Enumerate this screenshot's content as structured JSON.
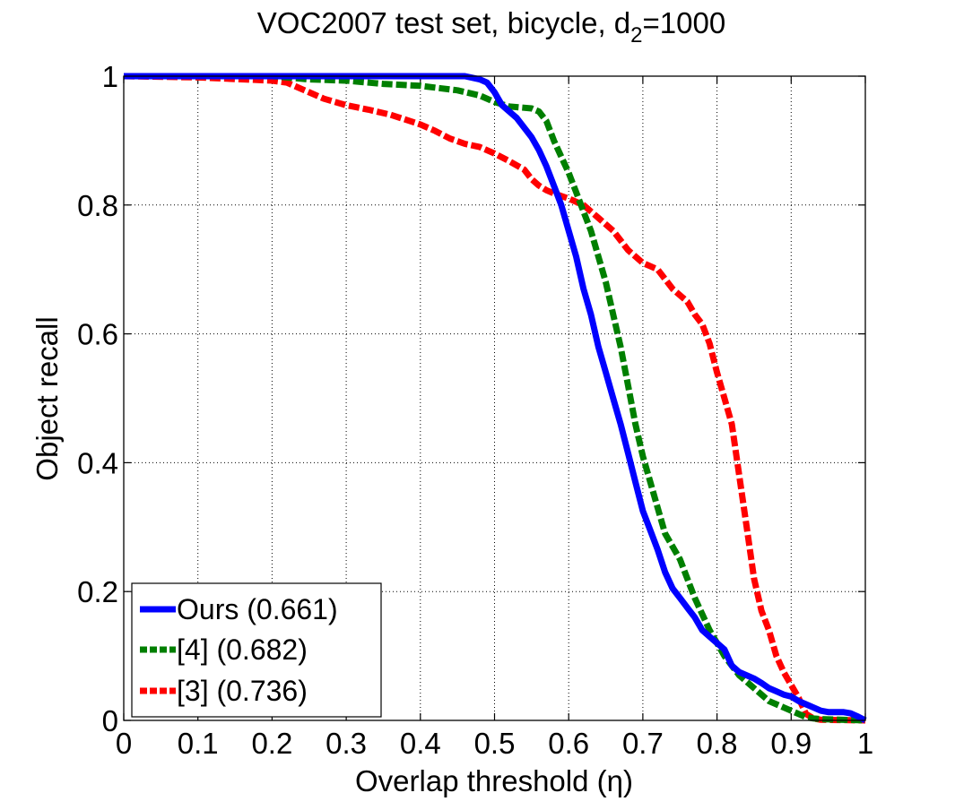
{
  "chart_data": {
    "type": "line",
    "title_main": "VOC2007 test set, bicycle, d",
    "title_subscript": "2",
    "title_suffix": "=1000",
    "xlabel": "Overlap threshold (η)",
    "ylabel": "Object recall",
    "xlim": [
      0,
      1
    ],
    "ylim": [
      0,
      1
    ],
    "grid": true,
    "legend_position": "bottom-left",
    "x_ticks": [
      {
        "value": 0,
        "label": "0"
      },
      {
        "value": 0.1,
        "label": "0.1"
      },
      {
        "value": 0.2,
        "label": "0.2"
      },
      {
        "value": 0.3,
        "label": "0.3"
      },
      {
        "value": 0.4,
        "label": "0.4"
      },
      {
        "value": 0.5,
        "label": "0.5"
      },
      {
        "value": 0.6,
        "label": "0.6"
      },
      {
        "value": 0.7,
        "label": "0.7"
      },
      {
        "value": 0.8,
        "label": "0.8"
      },
      {
        "value": 0.9,
        "label": "0.9"
      },
      {
        "value": 1,
        "label": "1"
      }
    ],
    "y_ticks": [
      {
        "value": 0,
        "label": "0"
      },
      {
        "value": 0.2,
        "label": "0.2"
      },
      {
        "value": 0.4,
        "label": "0.4"
      },
      {
        "value": 0.6,
        "label": "0.6"
      },
      {
        "value": 0.8,
        "label": "0.8"
      },
      {
        "value": 1,
        "label": "1"
      }
    ],
    "series": [
      {
        "name": "Ours (0.661)",
        "key": "ours",
        "color": "#0000ff",
        "dash": "solid",
        "points": [
          [
            0,
            1
          ],
          [
            0.3,
            1
          ],
          [
            0.46,
            1
          ],
          [
            0.48,
            0.995
          ],
          [
            0.49,
            0.99
          ],
          [
            0.5,
            0.975
          ],
          [
            0.51,
            0.955
          ],
          [
            0.52,
            0.945
          ],
          [
            0.53,
            0.935
          ],
          [
            0.54,
            0.92
          ],
          [
            0.55,
            0.905
          ],
          [
            0.56,
            0.885
          ],
          [
            0.57,
            0.86
          ],
          [
            0.58,
            0.83
          ],
          [
            0.59,
            0.8
          ],
          [
            0.6,
            0.76
          ],
          [
            0.61,
            0.72
          ],
          [
            0.62,
            0.67
          ],
          [
            0.63,
            0.63
          ],
          [
            0.64,
            0.58
          ],
          [
            0.65,
            0.54
          ],
          [
            0.66,
            0.5
          ],
          [
            0.67,
            0.46
          ],
          [
            0.68,
            0.415
          ],
          [
            0.69,
            0.37
          ],
          [
            0.7,
            0.325
          ],
          [
            0.71,
            0.295
          ],
          [
            0.72,
            0.265
          ],
          [
            0.73,
            0.23
          ],
          [
            0.74,
            0.205
          ],
          [
            0.75,
            0.19
          ],
          [
            0.76,
            0.175
          ],
          [
            0.77,
            0.16
          ],
          [
            0.78,
            0.14
          ],
          [
            0.79,
            0.13
          ],
          [
            0.8,
            0.12
          ],
          [
            0.81,
            0.11
          ],
          [
            0.82,
            0.085
          ],
          [
            0.83,
            0.075
          ],
          [
            0.84,
            0.07
          ],
          [
            0.85,
            0.065
          ],
          [
            0.86,
            0.058
          ],
          [
            0.87,
            0.05
          ],
          [
            0.88,
            0.045
          ],
          [
            0.89,
            0.04
          ],
          [
            0.9,
            0.037
          ],
          [
            0.91,
            0.03
          ],
          [
            0.92,
            0.025
          ],
          [
            0.93,
            0.02
          ],
          [
            0.94,
            0.015
          ],
          [
            0.95,
            0.013
          ],
          [
            0.96,
            0.013
          ],
          [
            0.97,
            0.013
          ],
          [
            0.98,
            0.011
          ],
          [
            0.99,
            0.006
          ],
          [
            1,
            0
          ]
        ]
      },
      {
        "name": "[4] (0.682)",
        "key": "ref4",
        "color": "#007f00",
        "dash": "dashed",
        "points": [
          [
            0,
            1
          ],
          [
            0.1,
            1
          ],
          [
            0.2,
            1
          ],
          [
            0.25,
            0.995
          ],
          [
            0.3,
            0.993
          ],
          [
            0.35,
            0.988
          ],
          [
            0.4,
            0.985
          ],
          [
            0.45,
            0.978
          ],
          [
            0.48,
            0.97
          ],
          [
            0.5,
            0.96
          ],
          [
            0.52,
            0.953
          ],
          [
            0.55,
            0.95
          ],
          [
            0.56,
            0.945
          ],
          [
            0.57,
            0.93
          ],
          [
            0.58,
            0.9
          ],
          [
            0.59,
            0.875
          ],
          [
            0.6,
            0.85
          ],
          [
            0.61,
            0.82
          ],
          [
            0.62,
            0.79
          ],
          [
            0.63,
            0.76
          ],
          [
            0.64,
            0.72
          ],
          [
            0.65,
            0.68
          ],
          [
            0.66,
            0.63
          ],
          [
            0.67,
            0.58
          ],
          [
            0.68,
            0.52
          ],
          [
            0.69,
            0.46
          ],
          [
            0.7,
            0.41
          ],
          [
            0.71,
            0.37
          ],
          [
            0.72,
            0.33
          ],
          [
            0.73,
            0.29
          ],
          [
            0.74,
            0.27
          ],
          [
            0.75,
            0.25
          ],
          [
            0.76,
            0.22
          ],
          [
            0.77,
            0.19
          ],
          [
            0.78,
            0.165
          ],
          [
            0.79,
            0.14
          ],
          [
            0.8,
            0.12
          ],
          [
            0.81,
            0.1
          ],
          [
            0.82,
            0.085
          ],
          [
            0.83,
            0.07
          ],
          [
            0.84,
            0.06
          ],
          [
            0.85,
            0.05
          ],
          [
            0.86,
            0.04
          ],
          [
            0.87,
            0.03
          ],
          [
            0.88,
            0.025
          ],
          [
            0.89,
            0.02
          ],
          [
            0.9,
            0.015
          ],
          [
            0.91,
            0.01
          ],
          [
            0.92,
            0.005
          ],
          [
            0.93,
            0.003
          ],
          [
            0.94,
            0.002
          ],
          [
            1,
            0
          ]
        ]
      },
      {
        "name": "[3] (0.736)",
        "key": "ref3",
        "color": "#ff0000",
        "dash": "dashed",
        "points": [
          [
            0,
            1
          ],
          [
            0.1,
            0.998
          ],
          [
            0.2,
            0.993
          ],
          [
            0.22,
            0.99
          ],
          [
            0.25,
            0.975
          ],
          [
            0.27,
            0.965
          ],
          [
            0.3,
            0.955
          ],
          [
            0.33,
            0.948
          ],
          [
            0.36,
            0.94
          ],
          [
            0.4,
            0.925
          ],
          [
            0.42,
            0.915
          ],
          [
            0.44,
            0.903
          ],
          [
            0.46,
            0.895
          ],
          [
            0.48,
            0.89
          ],
          [
            0.5,
            0.88
          ],
          [
            0.52,
            0.868
          ],
          [
            0.54,
            0.855
          ],
          [
            0.55,
            0.84
          ],
          [
            0.56,
            0.83
          ],
          [
            0.57,
            0.823
          ],
          [
            0.58,
            0.818
          ],
          [
            0.6,
            0.81
          ],
          [
            0.62,
            0.8
          ],
          [
            0.64,
            0.78
          ],
          [
            0.66,
            0.76
          ],
          [
            0.67,
            0.745
          ],
          [
            0.68,
            0.73
          ],
          [
            0.69,
            0.72
          ],
          [
            0.7,
            0.71
          ],
          [
            0.71,
            0.705
          ],
          [
            0.72,
            0.7
          ],
          [
            0.73,
            0.685
          ],
          [
            0.74,
            0.67
          ],
          [
            0.75,
            0.66
          ],
          [
            0.76,
            0.65
          ],
          [
            0.77,
            0.63
          ],
          [
            0.78,
            0.615
          ],
          [
            0.79,
            0.585
          ],
          [
            0.8,
            0.54
          ],
          [
            0.81,
            0.5
          ],
          [
            0.82,
            0.46
          ],
          [
            0.83,
            0.38
          ],
          [
            0.84,
            0.3
          ],
          [
            0.85,
            0.22
          ],
          [
            0.86,
            0.17
          ],
          [
            0.87,
            0.14
          ],
          [
            0.88,
            0.1
          ],
          [
            0.89,
            0.075
          ],
          [
            0.9,
            0.055
          ],
          [
            0.91,
            0.035
          ],
          [
            0.92,
            0.01
          ],
          [
            0.93,
            0.003
          ],
          [
            0.94,
            0.001
          ],
          [
            1,
            0
          ]
        ]
      }
    ]
  }
}
